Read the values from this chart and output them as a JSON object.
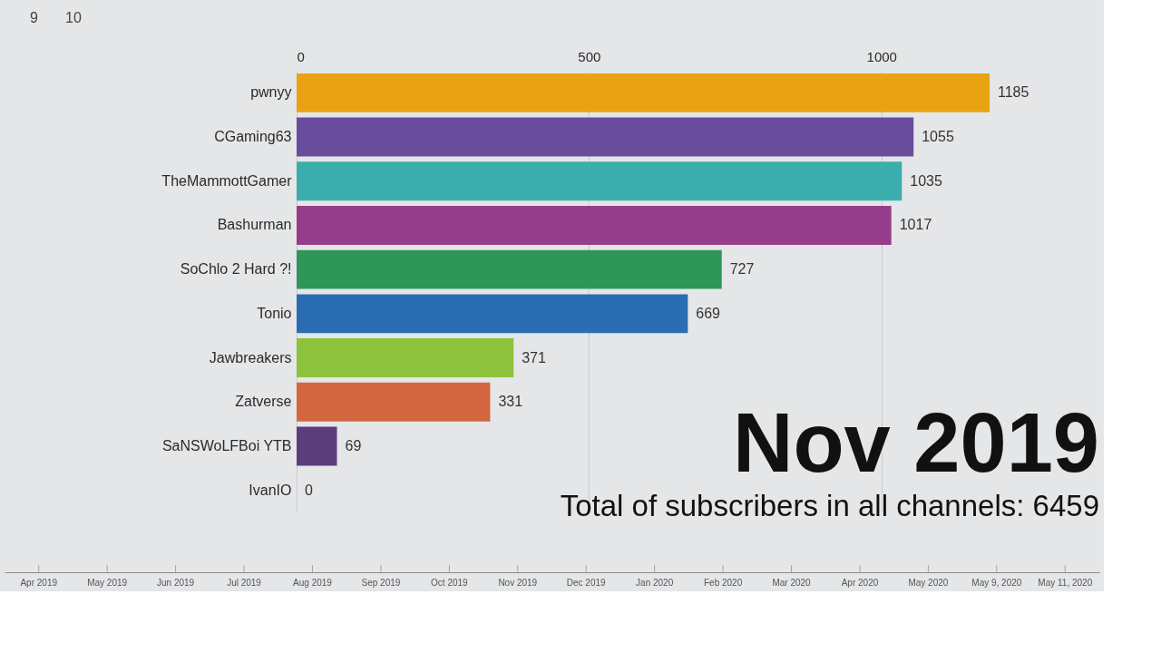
{
  "chart_data": [
    {
      "type": "bar",
      "orientation": "horizontal",
      "title": "Nov 2019",
      "subtitle": "Total of subscribers in all channels: 6459",
      "categories": [
        "pwnyy",
        "CGaming63",
        "TheMammottGamer",
        "Bashurman",
        "SoChlo 2 Hard ?!",
        "Tonio",
        "Jawbreakers",
        "Zatverse",
        "SaNSWoLFBoi YTB",
        "IvanIO"
      ],
      "values": [
        1185,
        1055,
        1035,
        1017,
        727,
        669,
        371,
        331,
        69,
        0
      ],
      "colors": [
        "#e9a312",
        "#6a4c9c",
        "#3cadad",
        "#963d8c",
        "#2e9658",
        "#2a6db0",
        "#8dc33c",
        "#d2663f",
        "#5c3d7c",
        "#a8421e"
      ],
      "xlim": [
        0,
        1185
      ],
      "xticks": [
        0,
        500,
        1000
      ],
      "grid": "x",
      "data_labels": true,
      "annotations": [
        "9",
        "10"
      ]
    },
    {
      "type": "other",
      "categories": [
        "Apr 2019",
        "May 2019",
        "Jun 2019",
        "Jul 2019",
        "Aug 2019",
        "Sep 2019",
        "Oct 2019",
        "Nov 2019",
        "Dec 2019",
        "Jan 2020",
        "Feb 2020",
        "Mar 2020",
        "Apr 2020",
        "May 2020",
        "May 9, 2020",
        "May 11, 2020"
      ]
    }
  ]
}
